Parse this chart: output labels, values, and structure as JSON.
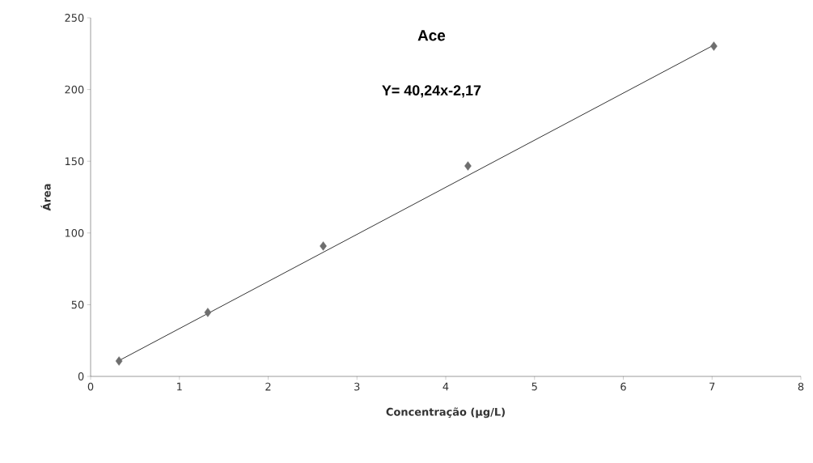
{
  "chart_data": {
    "type": "scatter",
    "title": "Ace",
    "xlabel": "Concentração (µg/L)",
    "ylabel": "Área",
    "annotations": [
      "Y= 40,24x-2,17"
    ],
    "x": [
      0.32,
      1.32,
      2.62,
      4.25,
      7.02
    ],
    "series": [
      {
        "color": "#6e6e6e",
        "marker": "diamond",
        "values": [
          10.7,
          44.6,
          90.9,
          146.7,
          230.2
        ]
      },
      {
        "type": "line",
        "color": "#000000",
        "marker": "none",
        "line_style": "solid",
        "x": [
          0.32,
          7.02
        ],
        "values": [
          11,
          231
        ]
      }
    ],
    "xlim": [
      0,
      8
    ],
    "ylim": [
      0,
      250
    ],
    "xticks": [
      0,
      1,
      2,
      3,
      4,
      5,
      6,
      7,
      8
    ],
    "yticks": [
      0,
      50,
      100,
      150,
      200,
      250
    ],
    "grid": false
  }
}
